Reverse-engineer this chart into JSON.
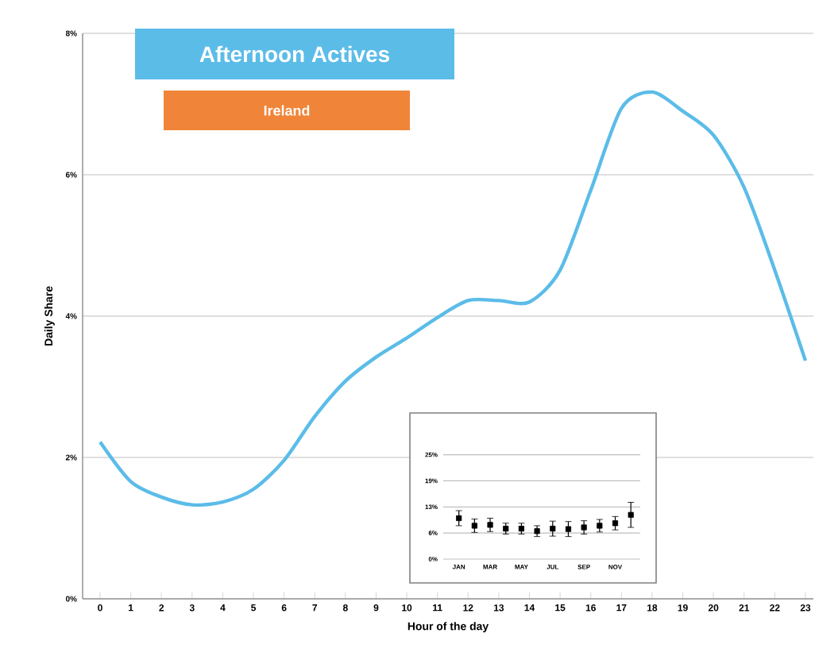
{
  "chart_data": [
    {
      "type": "line",
      "title": "Afternoon Actives",
      "subtitle": "Ireland",
      "xlabel": "Hour of the day",
      "ylabel": "Daily Share",
      "categories": [
        "0",
        "1",
        "2",
        "3",
        "4",
        "5",
        "6",
        "7",
        "8",
        "9",
        "10",
        "11",
        "12",
        "13",
        "14",
        "15",
        "16",
        "17",
        "18",
        "19",
        "20",
        "21",
        "22",
        "23"
      ],
      "values": [
        2.22,
        1.66,
        1.44,
        1.33,
        1.37,
        1.55,
        1.96,
        2.58,
        3.08,
        3.42,
        3.69,
        3.98,
        4.22,
        4.22,
        4.2,
        4.65,
        5.78,
        6.94,
        7.17,
        6.9,
        6.56,
        5.82,
        4.65,
        3.37
      ],
      "color": "#5bbce8",
      "ylim": [
        0,
        8
      ],
      "yticks": [
        {
          "value": 0,
          "label": "0%"
        },
        {
          "value": 2,
          "label": "2%"
        },
        {
          "value": 4,
          "label": "4%"
        },
        {
          "value": 6,
          "label": "6%"
        },
        {
          "value": 8,
          "label": "8%"
        }
      ],
      "grid": "y"
    },
    {
      "type": "scatter",
      "categories": [
        "JAN",
        null,
        "MAR",
        null,
        "MAY",
        null,
        "JUL",
        null,
        "SEP",
        null,
        "NOV",
        null
      ],
      "values": [
        9.8,
        8.0,
        8.2,
        7.3,
        7.3,
        6.7,
        7.3,
        7.2,
        7.6,
        8.0,
        8.6,
        10.6
      ],
      "errors": [
        1.8,
        1.6,
        1.6,
        1.3,
        1.3,
        1.3,
        1.8,
        1.8,
        1.6,
        1.5,
        1.6,
        3.0
      ],
      "color": "#000000",
      "ylim": [
        0,
        35
      ],
      "yticks": [
        {
          "value": 0,
          "label": "0%"
        },
        {
          "value": 6.25,
          "label": "6%"
        },
        {
          "value": 12.5,
          "label": "13%"
        },
        {
          "value": 18.75,
          "label": "19%"
        },
        {
          "value": 25,
          "label": "25%"
        }
      ],
      "grid": "y",
      "marker": "square"
    }
  ]
}
